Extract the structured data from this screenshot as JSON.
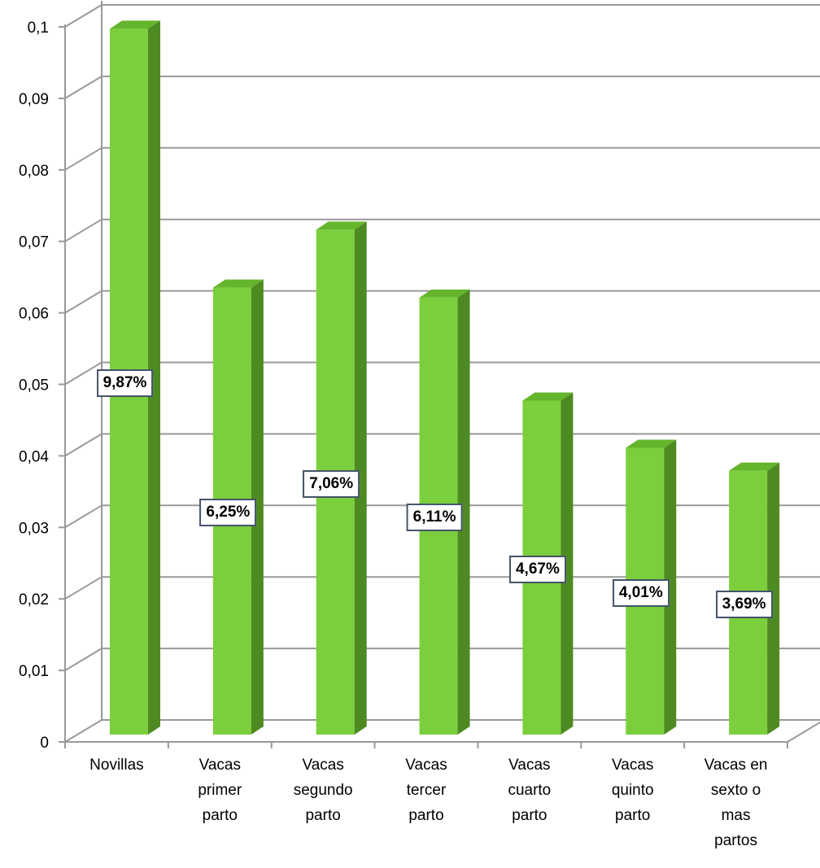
{
  "chart_data": {
    "type": "bar3d",
    "categories": [
      "Novillas",
      "Vacas primer parto",
      "Vacas segundo parto",
      "Vacas tercer parto",
      "Vacas cuarto parto",
      "Vacas quinto parto",
      "Vacas en sexto o mas partos"
    ],
    "values": [
      0.0987,
      0.0625,
      0.0706,
      0.0611,
      0.0467,
      0.0401,
      0.0369
    ],
    "value_labels": [
      "9,87%",
      "6,25%",
      "7,06%",
      "6,11%",
      "4,67%",
      "4,01%",
      "3,69%"
    ],
    "color": "#7ccf3c",
    "ylim": [
      0,
      0.1
    ],
    "yticks": [
      0,
      {
        "value": 0.01,
        "label": "0,01"
      },
      {
        "value": 0.02,
        "label": "0,02"
      },
      {
        "value": 0.03,
        "label": "0,03"
      },
      {
        "value": 0.04,
        "label": "0,04"
      },
      {
        "value": 0.05,
        "label": "0,05"
      },
      {
        "value": 0.06,
        "label": "0,06"
      },
      {
        "value": 0.07,
        "label": "0,07"
      },
      {
        "value": 0.08,
        "label": "0,08"
      },
      {
        "value": 0.09,
        "label": "0,09"
      },
      {
        "value": 0.1,
        "label": "0,1"
      }
    ],
    "grid": true
  }
}
